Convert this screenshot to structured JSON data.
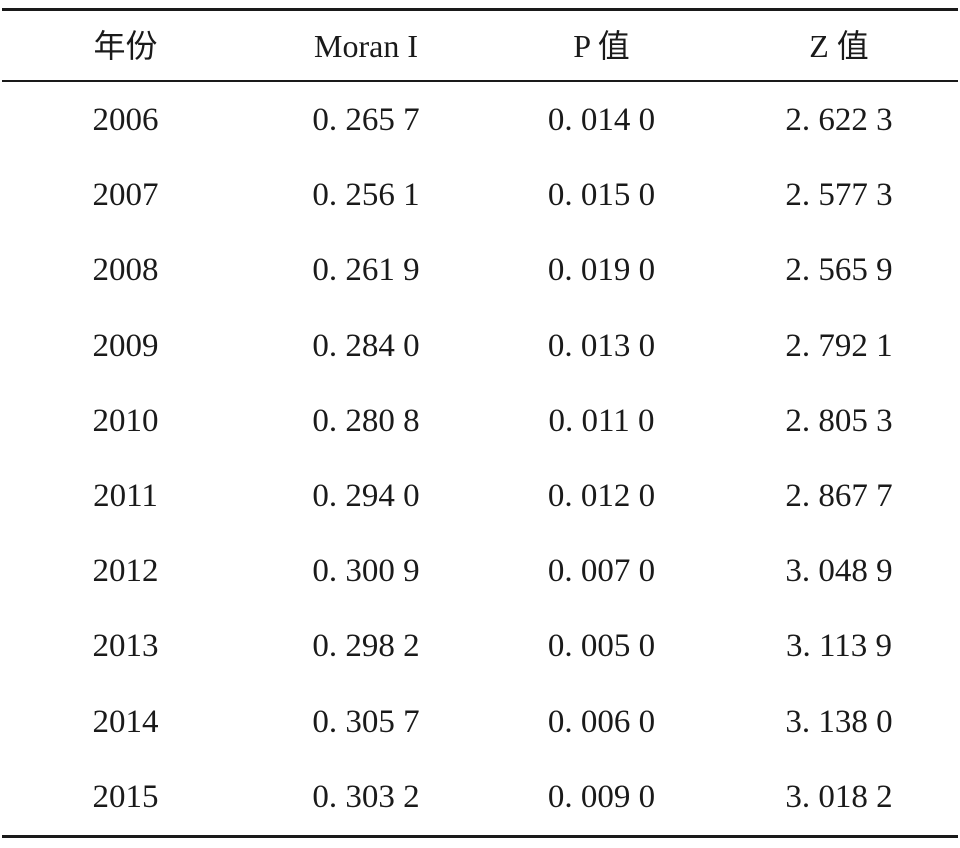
{
  "table": {
    "columns": [
      "年份",
      "Moran I",
      "P 值",
      "Z 值"
    ],
    "rows": [
      [
        "2006",
        "0. 265 7",
        "0. 014 0",
        "2. 622 3"
      ],
      [
        "2007",
        "0. 256 1",
        "0. 015 0",
        "2. 577 3"
      ],
      [
        "2008",
        "0. 261 9",
        "0. 019 0",
        "2. 565 9"
      ],
      [
        "2009",
        "0. 284 0",
        "0. 013 0",
        "2. 792 1"
      ],
      [
        "2010",
        "0. 280 8",
        "0. 011 0",
        "2. 805 3"
      ],
      [
        "2011",
        "0. 294 0",
        "0. 012 0",
        "2. 867 7"
      ],
      [
        "2012",
        "0. 300 9",
        "0. 007 0",
        "3. 048 9"
      ],
      [
        "2013",
        "0. 298 2",
        "0. 005 0",
        "3. 113 9"
      ],
      [
        "2014",
        "0. 305 7",
        "0. 006 0",
        "3. 138 0"
      ],
      [
        "2015",
        "0. 303 2",
        "0. 009 0",
        "3. 018 2"
      ]
    ]
  }
}
